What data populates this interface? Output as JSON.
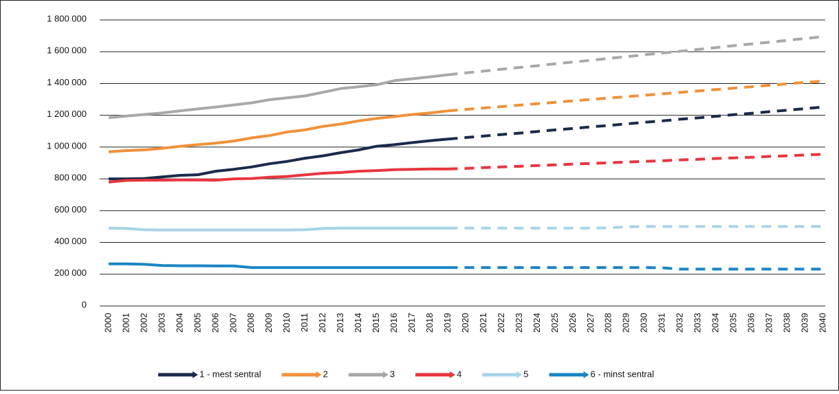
{
  "chart_data": {
    "type": "line",
    "categories": [
      "2000",
      "2001",
      "2002",
      "2003",
      "2004",
      "2005",
      "2006",
      "2007",
      "2008",
      "2009",
      "2010",
      "2011",
      "2012",
      "2013",
      "2014",
      "2015",
      "2016",
      "2017",
      "2018",
      "2019",
      "2020",
      "2021",
      "2022",
      "2023",
      "2024",
      "2025",
      "2026",
      "2027",
      "2028",
      "2029",
      "2030",
      "2031",
      "2032",
      "2033",
      "2034",
      "2035",
      "2036",
      "2037",
      "2038",
      "2039",
      "2040"
    ],
    "dashed_from": "2019",
    "series": [
      {
        "name": "1 - mest sentral",
        "color": "#1b2a4a",
        "values": [
          800000,
          800000,
          802000,
          812000,
          822000,
          826000,
          848000,
          860000,
          875000,
          895000,
          910000,
          930000,
          945000,
          965000,
          982000,
          1005000,
          1015000,
          1028000,
          1040000,
          1050000,
          1060000,
          1069000,
          1079000,
          1088000,
          1098000,
          1108000,
          1117000,
          1127000,
          1136000,
          1146000,
          1156000,
          1165000,
          1175000,
          1184000,
          1194000,
          1204000,
          1213000,
          1223000,
          1232000,
          1242000,
          1252000
        ]
      },
      {
        "name": "2",
        "color": "#f0913a",
        "values": [
          970000,
          978000,
          982000,
          992000,
          1005000,
          1015000,
          1025000,
          1038000,
          1058000,
          1072000,
          1095000,
          1108000,
          1130000,
          1145000,
          1165000,
          1180000,
          1192000,
          1205000,
          1215000,
          1228000,
          1237000,
          1246000,
          1255000,
          1264000,
          1273000,
          1282000,
          1291000,
          1300000,
          1309000,
          1317000,
          1326000,
          1335000,
          1344000,
          1353000,
          1362000,
          1371000,
          1380000,
          1389000,
          1398000,
          1407000,
          1415000
        ]
      },
      {
        "name": "3",
        "color": "#a8a8a8",
        "values": [
          1185000,
          1195000,
          1205000,
          1215000,
          1228000,
          1240000,
          1252000,
          1265000,
          1278000,
          1298000,
          1310000,
          1322000,
          1345000,
          1368000,
          1380000,
          1392000,
          1418000,
          1430000,
          1442000,
          1455000,
          1467000,
          1478000,
          1490000,
          1501000,
          1512000,
          1524000,
          1535000,
          1546000,
          1558000,
          1569000,
          1581000,
          1592000,
          1603000,
          1615000,
          1626000,
          1638000,
          1649000,
          1660000,
          1672000,
          1683000,
          1695000
        ]
      },
      {
        "name": "4",
        "color": "#e8353f",
        "values": [
          780000,
          790000,
          792000,
          792000,
          793000,
          793000,
          792000,
          800000,
          802000,
          810000,
          815000,
          825000,
          835000,
          840000,
          848000,
          852000,
          858000,
          860000,
          862000,
          862000,
          866000,
          871000,
          875000,
          879000,
          884000,
          888000,
          893000,
          897000,
          901000,
          906000,
          910000,
          914000,
          919000,
          923000,
          928000,
          932000,
          936000,
          941000,
          945000,
          950000,
          955000
        ]
      },
      {
        "name": "5",
        "color": "#a9d3e6",
        "values": [
          490000,
          488000,
          480000,
          478000,
          478000,
          478000,
          478000,
          478000,
          478000,
          478000,
          478000,
          480000,
          488000,
          490000,
          490000,
          490000,
          490000,
          490000,
          490000,
          490000,
          490000,
          490000,
          490000,
          490000,
          490000,
          490000,
          490000,
          490000,
          492000,
          498000,
          500000,
          500000,
          500000,
          500000,
          500000,
          500000,
          500000,
          500000,
          500000,
          500000,
          500000
        ]
      },
      {
        "name": "6 - minst sentral",
        "color": "#1a85c4",
        "values": [
          265000,
          265000,
          262000,
          255000,
          253000,
          253000,
          252000,
          252000,
          242000,
          242000,
          242000,
          242000,
          242000,
          242000,
          242000,
          242000,
          242000,
          242000,
          242000,
          242000,
          242000,
          242000,
          242000,
          242000,
          242000,
          242000,
          242000,
          242000,
          242000,
          242000,
          242000,
          240000,
          232000,
          232000,
          232000,
          232000,
          232000,
          232000,
          232000,
          232000,
          232000
        ]
      }
    ],
    "ylim": [
      0,
      1800000
    ],
    "yticks": [
      0,
      {
        "value": 200000,
        "label": "200 000"
      },
      {
        "value": 400000,
        "label": "400 000"
      },
      {
        "value": 600000,
        "label": "600 000"
      },
      {
        "value": 800000,
        "label": "800 000"
      },
      {
        "value": 1000000,
        "label": "1 000 000"
      },
      {
        "value": 1200000,
        "label": "1 200 000"
      },
      {
        "value": 1400000,
        "label": "1 400 000"
      },
      {
        "value": 1600000,
        "label": "1 600 000"
      },
      {
        "value": 1800000,
        "label": "1 800 000"
      }
    ],
    "grid": true,
    "legend": "bottom"
  }
}
